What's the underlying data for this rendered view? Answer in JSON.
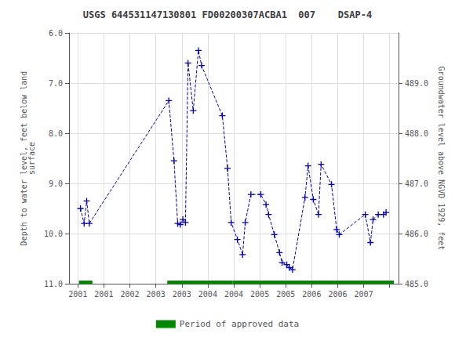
{
  "chart_data": {
    "type": "line",
    "title": "USGS 644531147130801 FD00200307ACBA1  007    DSAP-4",
    "ylabel": "Depth to water level, feet below land\nsurface",
    "y2label": "Groundwater level above NGVD 1929, feet",
    "xlim": [
      2000.83,
      2007.17
    ],
    "xticks": [
      2001.0,
      {
        "value": 2001.5,
        "label": "2001"
      },
      2002.0,
      {
        "value": 2002.5,
        "label": "2003"
      },
      2003.0,
      {
        "value": 2003.5,
        "label": "2004"
      },
      2004.0,
      {
        "value": 2004.5,
        "label": "2005"
      },
      2005.0,
      {
        "value": 2005.5,
        "label": "2006"
      },
      2006.0,
      {
        "value": 2006.5,
        "label": "2007"
      },
      {
        "value": 2007.0,
        "label": null
      }
    ],
    "ylim": [
      11.0,
      6.0
    ],
    "yticks": [
      {
        "value": 6.0,
        "label": "6.0"
      },
      {
        "value": 7.0,
        "label": "7.0"
      },
      {
        "value": 8.0,
        "label": "8.0"
      },
      {
        "value": 9.0,
        "label": "9.0"
      },
      {
        "value": 10.0,
        "label": "10.0"
      },
      {
        "value": 11.0,
        "label": "11.0"
      }
    ],
    "y2lim": [
      485.0,
      490.0
    ],
    "y2ticks": [
      {
        "value": 485.0,
        "label": "485.0"
      },
      {
        "value": 486.0,
        "label": "486.0"
      },
      {
        "value": 487.0,
        "label": "487.0"
      },
      {
        "value": 488.0,
        "label": "488.0"
      },
      {
        "value": 489.0,
        "label": "489.0"
      }
    ],
    "grid": true,
    "legend": "bottom",
    "series": [
      {
        "type": "line",
        "color": "#0000bb",
        "marker": "plus",
        "line_style": "dashed",
        "x": [
          2001.05,
          2001.12,
          2001.17,
          2001.22,
          2002.75,
          2002.85,
          2002.92,
          2002.97,
          2003.02,
          2003.07,
          2003.12,
          2003.22,
          2003.32,
          2003.38,
          2003.78,
          2003.88,
          2003.95,
          2004.07,
          2004.17,
          2004.22,
          2004.33,
          2004.52,
          2004.62,
          2004.67,
          2004.78,
          2004.88,
          2004.93,
          2005.02,
          2005.07,
          2005.13,
          2005.37,
          2005.43,
          2005.53,
          2005.63,
          2005.68,
          2005.88,
          2005.98,
          2006.03,
          2006.53,
          2006.63,
          2006.68,
          2006.78,
          2006.88,
          2006.93
        ],
        "values": [
          9.5,
          9.8,
          9.35,
          9.8,
          7.35,
          8.55,
          9.8,
          9.82,
          9.72,
          9.78,
          6.6,
          7.55,
          6.35,
          6.65,
          7.65,
          8.7,
          9.78,
          10.12,
          10.42,
          9.78,
          9.22,
          9.22,
          9.42,
          9.62,
          10.02,
          10.38,
          10.58,
          10.62,
          10.68,
          10.72,
          9.28,
          8.65,
          9.32,
          9.62,
          8.62,
          9.02,
          9.92,
          10.02,
          9.62,
          10.18,
          9.72,
          9.62,
          9.62,
          9.58
        ]
      },
      {
        "type": "bar",
        "orientation": "horizontal",
        "name": "Period of approved data",
        "color": "#008800",
        "y": 11.0,
        "values": [
          [
            2001.02,
            2001.28
          ],
          [
            2002.72,
            2003.98
          ],
          [
            2003.98,
            2007.08
          ]
        ]
      }
    ]
  }
}
